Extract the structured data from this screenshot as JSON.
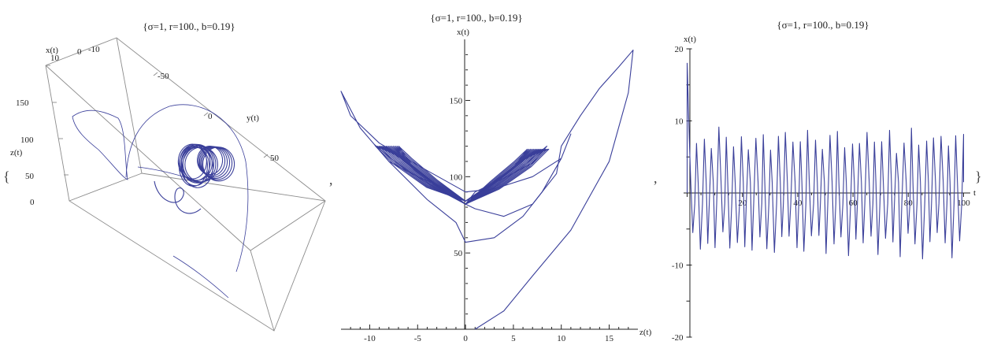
{
  "brackets": {
    "open": "{",
    "close": "}",
    "sep1": ",",
    "sep2": ","
  },
  "chart_data": [
    {
      "type": "line",
      "subtype": "3d-parametric",
      "title": "{σ=1, r=100., b=0.19}",
      "axis_labels": {
        "x": "x(t)",
        "y": "y(t)",
        "z": "z(t)"
      },
      "x_ticks": [
        "10",
        "0",
        "-10"
      ],
      "y_ticks": [
        "-50",
        "0",
        "50"
      ],
      "z_ticks": [
        "0",
        "50",
        "100",
        "150"
      ]
    },
    {
      "type": "line",
      "subtype": "parametric-projection",
      "title": "{σ=1, r=100., b=0.19}",
      "xlabel": "z(t)",
      "ylabel": "x(t)",
      "xlim": [
        -13,
        18
      ],
      "ylim": [
        0,
        190
      ],
      "x_ticks": [
        -10,
        -5,
        0,
        5,
        10,
        15
      ],
      "y_ticks": [
        50,
        100,
        150
      ],
      "series": [
        {
          "points": [
            [
              0,
              82
            ],
            [
              -3,
              92
            ],
            [
              -7,
              108
            ],
            [
              -9.5,
              121
            ],
            [
              -8,
              110
            ],
            [
              -5,
              100
            ],
            [
              -2,
              92
            ],
            [
              0,
              82
            ],
            [
              3,
              93
            ],
            [
              6,
              107
            ],
            [
              8.5,
              120
            ],
            [
              7,
              109
            ],
            [
              4,
              99
            ],
            [
              1,
              90
            ],
            [
              0,
              82
            ]
          ]
        },
        {
          "points": [
            [
              0,
              90
            ],
            [
              -4,
              104
            ],
            [
              -9,
              122
            ],
            [
              -12,
              140
            ],
            [
              -13,
              156
            ],
            [
              -11,
              132
            ],
            [
              -8,
              110
            ],
            [
              -4,
              85
            ],
            [
              -1,
              70
            ],
            [
              0,
              57
            ],
            [
              3,
              60
            ],
            [
              6,
              74
            ],
            [
              8,
              90
            ],
            [
              10,
              112
            ],
            [
              11,
              128
            ],
            [
              10,
              112
            ],
            [
              7,
              100
            ],
            [
              3,
              92
            ],
            [
              0,
              90
            ]
          ]
        },
        {
          "points": [
            [
              0,
              82
            ],
            [
              1,
              79
            ],
            [
              4,
              74
            ],
            [
              7,
              82
            ],
            [
              9.5,
              102
            ],
            [
              10,
              120
            ],
            [
              12,
              140
            ],
            [
              14,
              158
            ],
            [
              16,
              172
            ],
            [
              17.5,
              183
            ],
            [
              17,
              155
            ],
            [
              15,
              110
            ],
            [
              11,
              65
            ],
            [
              7,
              35
            ],
            [
              4,
              12
            ],
            [
              1,
              0
            ]
          ]
        }
      ]
    },
    {
      "type": "line",
      "title": "{σ=1, r=100., b=0.19}",
      "xlabel": "t",
      "ylabel": "x(t)",
      "xlim": [
        -3,
        103
      ],
      "ylim": [
        -20,
        20
      ],
      "x_ticks": [
        20,
        40,
        60,
        80,
        100
      ],
      "y_ticks": [
        -20,
        -10,
        10,
        20
      ],
      "series": [
        {
          "name": "",
          "x_range": [
            0,
            100
          ],
          "approx_peak_max": 18,
          "approx_peak_min": -9
        }
      ]
    }
  ]
}
